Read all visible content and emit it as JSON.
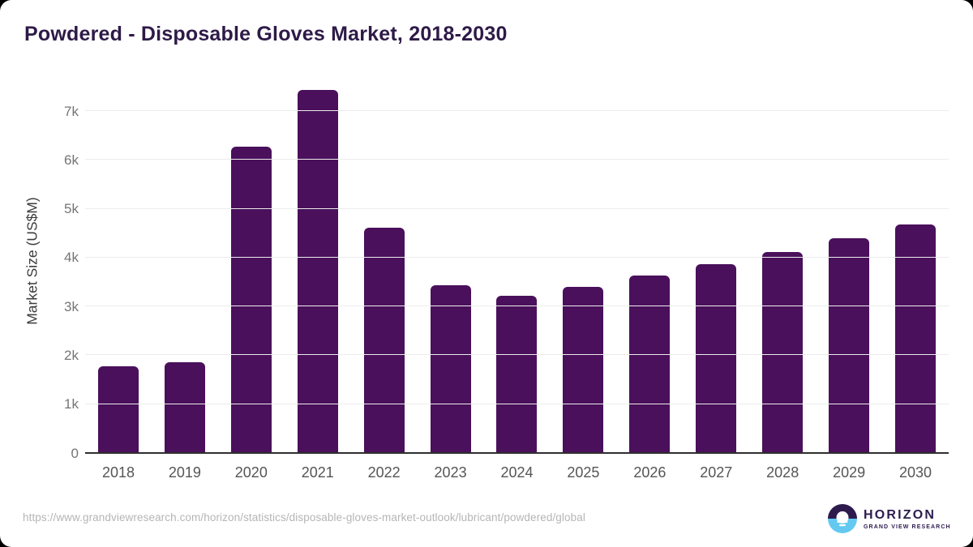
{
  "page": {
    "title": "Powdered - Disposable Gloves Market, 2018-2030"
  },
  "chart_data": {
    "type": "bar",
    "title": "Powdered - Disposable Gloves Market, 2018-2030",
    "categories": [
      "2018",
      "2019",
      "2020",
      "2021",
      "2022",
      "2023",
      "2024",
      "2025",
      "2026",
      "2027",
      "2028",
      "2029",
      "2030"
    ],
    "values": [
      1780,
      1860,
      6280,
      7430,
      4620,
      3440,
      3220,
      3410,
      3630,
      3860,
      4110,
      4390,
      4680
    ],
    "xlabel": "",
    "ylabel": "Market Size (US$M)",
    "ylim": [
      0,
      7500
    ],
    "yticks": [
      0,
      1000,
      2000,
      3000,
      4000,
      5000,
      6000,
      7000
    ],
    "ytick_labels": [
      "0",
      "1k",
      "2k",
      "3k",
      "4k",
      "5k",
      "6k",
      "7k"
    ],
    "grid": true,
    "legend": false,
    "bar_color": "#4a105c"
  },
  "footer": {
    "source_url": "https://www.grandviewresearch.com/horizon/statistics/disposable-gloves-market-outlook/lubricant/powdered/global",
    "brand": {
      "name": "HORIZON",
      "subtitle": "GRAND VIEW RESEARCH"
    }
  },
  "colors": {
    "bar": "#4a105c",
    "title": "#2e1a47",
    "gridline": "#ececec",
    "axis": "#2f2f2f",
    "tick_label": "#757575",
    "x_label": "#555555",
    "url_text": "#b5b5b5",
    "logo_purple": "#2d1b4e",
    "logo_blue": "#63c9f1"
  }
}
